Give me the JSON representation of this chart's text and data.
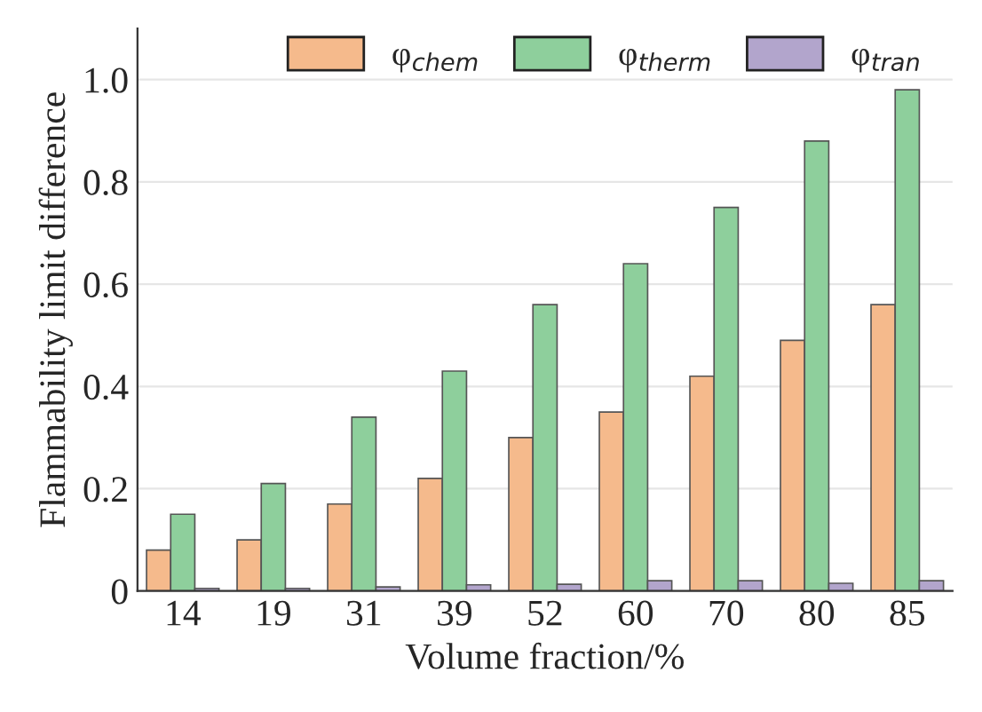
{
  "chart_data": {
    "type": "bar",
    "xlabel": "Volume fraction/%",
    "ylabel": "Flammability limit difference",
    "categories": [
      "14",
      "19",
      "31",
      "39",
      "52",
      "60",
      "70",
      "80",
      "85"
    ],
    "series": [
      {
        "name": "φ$_{chem}$",
        "color": "#f5ba8c",
        "values": [
          0.08,
          0.1,
          0.17,
          0.22,
          0.3,
          0.35,
          0.42,
          0.49,
          0.56
        ]
      },
      {
        "name": "φ$_{therm}$",
        "color": "#8ecf9c",
        "values": [
          0.15,
          0.21,
          0.34,
          0.43,
          0.56,
          0.64,
          0.75,
          0.88,
          0.98
        ]
      },
      {
        "name": "φ$_{tran}$",
        "color": "#b2a5cc",
        "values": [
          0.005,
          0.005,
          0.008,
          0.012,
          0.013,
          0.02,
          0.02,
          0.015,
          0.02
        ]
      }
    ],
    "ylim": [
      0,
      1.1
    ],
    "yticks": [
      0,
      0.2,
      0.4,
      0.6,
      0.8,
      {
        "value": 1.0,
        "label": "1.0"
      }
    ],
    "grid": "y",
    "legend": "top right"
  }
}
